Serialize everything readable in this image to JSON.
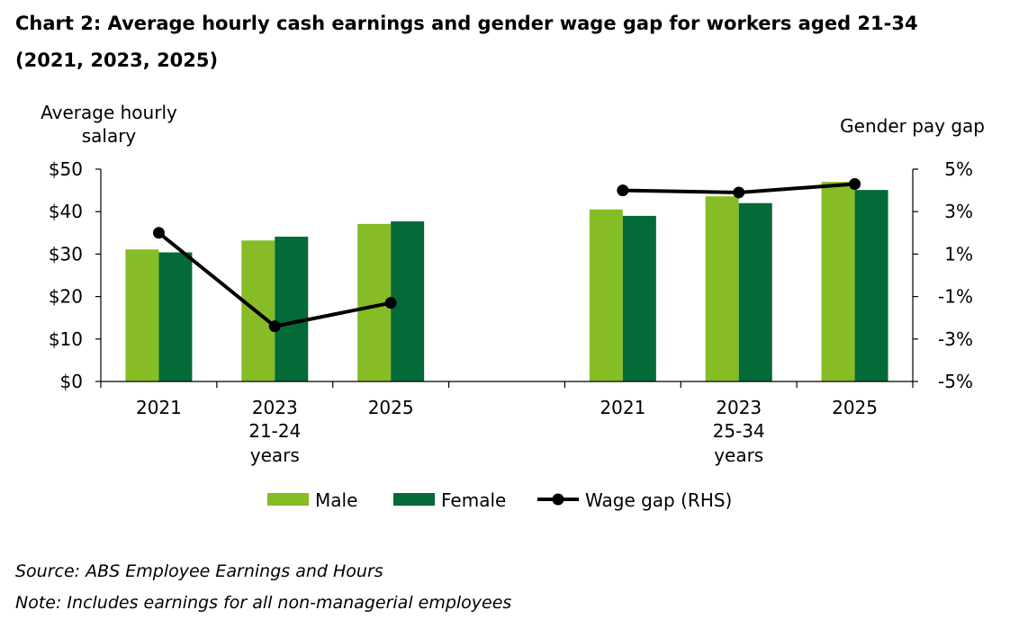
{
  "title": "Chart 2: Average hourly cash earnings and gender wage gap for workers aged 21-34 (2021, 2023, 2025)",
  "source": "Source: ABS Employee Earnings and Hours",
  "note": "Note: Includes earnings for all non-managerial employees",
  "chart_data": {
    "type": "bar",
    "y_axis_title": "Average hourly salary",
    "y2_axis_title": "Gender pay gap",
    "ylim": [
      0,
      50
    ],
    "y_ticks": [
      "$0",
      "$10",
      "$20",
      "$30",
      "$40",
      "$50"
    ],
    "y2lim": [
      -5,
      5
    ],
    "y2_ticks": [
      "-5%",
      "-3%",
      "-1%",
      "1%",
      "3%",
      "5%"
    ],
    "groups": [
      {
        "label": "21-24 years",
        "categories": [
          "2021",
          "2023",
          "2025"
        ]
      },
      {
        "label": "25-34 years",
        "categories": [
          "2021",
          "2023",
          "2025"
        ]
      }
    ],
    "series": [
      {
        "name": "Male",
        "type": "bar",
        "axis": "left",
        "color": "#86bc25",
        "values": [
          [
            31.1,
            33.2,
            37.1
          ],
          [
            40.5,
            43.6,
            47.0
          ]
        ]
      },
      {
        "name": "Female",
        "type": "bar",
        "axis": "left",
        "color": "#046a38",
        "values": [
          [
            30.4,
            34.1,
            37.7
          ],
          [
            39.0,
            42.0,
            45.1
          ]
        ]
      },
      {
        "name": "Wage gap (RHS)",
        "type": "line",
        "axis": "right",
        "color": "#000000",
        "values": [
          [
            2.0,
            -2.4,
            -1.3
          ],
          [
            4.0,
            3.9,
            4.3
          ]
        ]
      }
    ],
    "legend_position": "bottom",
    "grid": false
  }
}
